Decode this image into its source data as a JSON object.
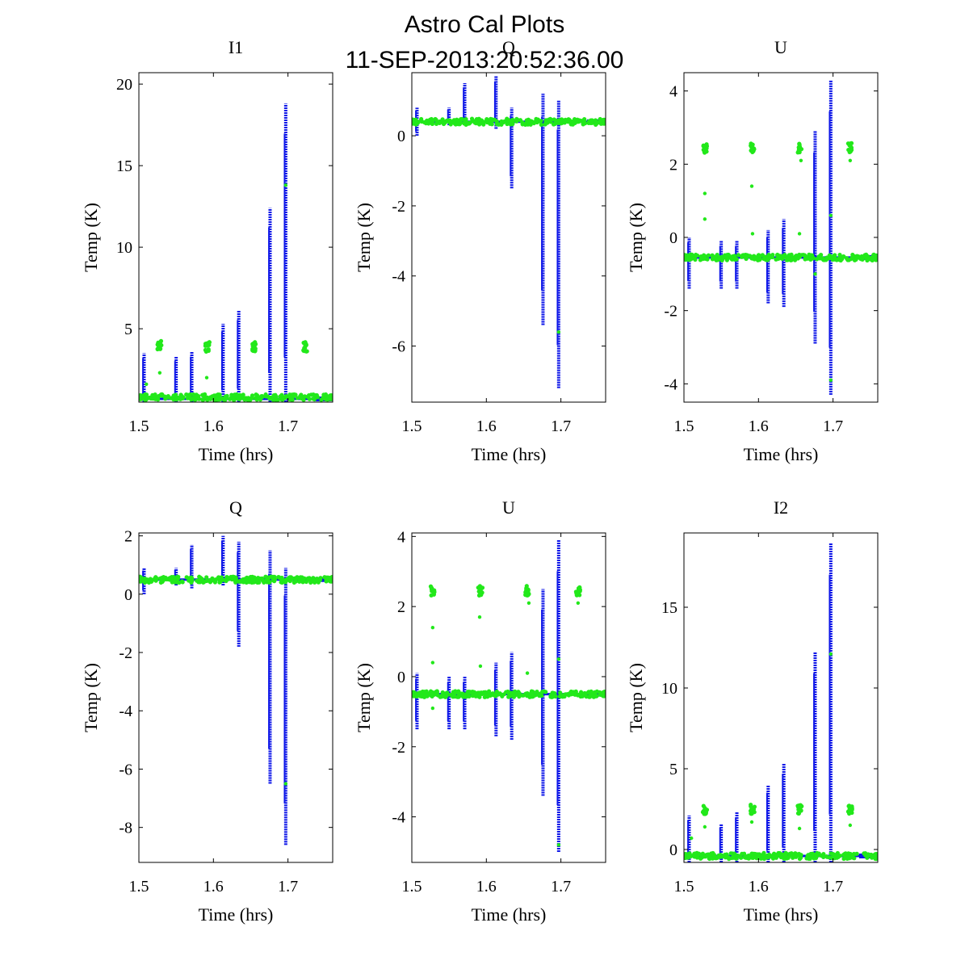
{
  "figure": {
    "title_line1": "Astro Cal Plots",
    "title_line2": "11-SEP-2013:20:52:36.00"
  },
  "chart_data": [
    {
      "type": "scatter",
      "title": "I1",
      "xlabel": "Time (hrs)",
      "ylabel": "Temp (K)",
      "xlim": [
        1.5,
        1.76
      ],
      "ylim": [
        0.5,
        20.7
      ],
      "xticks": [
        1.5,
        1.6,
        1.7
      ],
      "yticks": [
        5,
        10,
        15,
        20
      ],
      "baseline": {
        "blue": 0.7,
        "green": 0.8
      },
      "blue_spikes": [
        {
          "x": 1.507,
          "ymin": 0.5,
          "ymax": 3.5
        },
        {
          "x": 1.55,
          "ymin": 0.5,
          "ymax": 3.3
        },
        {
          "x": 1.571,
          "ymin": 0.5,
          "ymax": 3.6
        },
        {
          "x": 1.613,
          "ymin": 0.5,
          "ymax": 5.3
        },
        {
          "x": 1.634,
          "ymin": 0.5,
          "ymax": 6.1
        },
        {
          "x": 1.676,
          "ymin": 0.5,
          "ymax": 12.4
        },
        {
          "x": 1.697,
          "ymin": 0.5,
          "ymax": 18.8
        }
      ],
      "green_clusters": [
        {
          "x": 1.528,
          "y": 4.0
        },
        {
          "x": 1.592,
          "y": 3.9
        },
        {
          "x": 1.655,
          "y": 3.9
        },
        {
          "x": 1.723,
          "y": 3.9
        }
      ],
      "green_outliers": [
        {
          "x": 1.528,
          "y": 2.3
        },
        {
          "x": 1.591,
          "y": 2.0
        },
        {
          "x": 1.697,
          "y": 13.8
        },
        {
          "x": 1.51,
          "y": 1.6
        }
      ],
      "colors": {
        "blue": "#0d16e8",
        "green": "#22e81a"
      }
    },
    {
      "type": "scatter",
      "title": "Q",
      "xlabel": "Time (hrs)",
      "ylabel": "Temp (K)",
      "xlim": [
        1.5,
        1.76
      ],
      "ylim": [
        -7.6,
        1.8
      ],
      "xticks": [
        1.5,
        1.6,
        1.7
      ],
      "yticks": [
        -6,
        -4,
        -2,
        0
      ],
      "baseline": {
        "blue": 0.4,
        "green": 0.4
      },
      "blue_spikes": [
        {
          "x": 1.507,
          "ymin": 0.0,
          "ymax": 0.8
        },
        {
          "x": 1.55,
          "ymin": 0.3,
          "ymax": 0.8
        },
        {
          "x": 1.571,
          "ymin": 0.3,
          "ymax": 1.5
        },
        {
          "x": 1.613,
          "ymin": 0.2,
          "ymax": 1.7
        },
        {
          "x": 1.634,
          "ymin": -1.5,
          "ymax": 0.8
        },
        {
          "x": 1.676,
          "ymin": -5.4,
          "ymax": 1.2
        },
        {
          "x": 1.697,
          "ymin": -7.2,
          "ymax": 1.0
        }
      ],
      "green_clusters": [],
      "green_outliers": [
        {
          "x": 1.697,
          "y": -5.6
        }
      ],
      "colors": {
        "blue": "#0d16e8",
        "green": "#22e81a"
      }
    },
    {
      "type": "scatter",
      "title": "U",
      "xlabel": "Time (hrs)",
      "ylabel": "Temp (K)",
      "xlim": [
        1.5,
        1.76
      ],
      "ylim": [
        -4.5,
        4.5
      ],
      "xticks": [
        1.5,
        1.6,
        1.7
      ],
      "yticks": [
        -4,
        -2,
        0,
        2,
        4
      ],
      "baseline": {
        "blue": -0.55,
        "green": -0.55
      },
      "blue_spikes": [
        {
          "x": 1.507,
          "ymin": -1.4,
          "ymax": 0.0
        },
        {
          "x": 1.55,
          "ymin": -1.4,
          "ymax": -0.1
        },
        {
          "x": 1.571,
          "ymin": -1.4,
          "ymax": -0.1
        },
        {
          "x": 1.613,
          "ymin": -1.8,
          "ymax": 0.2
        },
        {
          "x": 1.634,
          "ymin": -1.9,
          "ymax": 0.5
        },
        {
          "x": 1.676,
          "ymin": -2.9,
          "ymax": 2.9
        },
        {
          "x": 1.697,
          "ymin": -4.3,
          "ymax": 4.3
        }
      ],
      "green_clusters": [
        {
          "x": 1.528,
          "y": 2.45
        },
        {
          "x": 1.592,
          "y": 2.45
        },
        {
          "x": 1.655,
          "y": 2.45
        },
        {
          "x": 1.723,
          "y": 2.45
        }
      ],
      "green_outliers": [
        {
          "x": 1.528,
          "y": 1.2
        },
        {
          "x": 1.528,
          "y": 0.5
        },
        {
          "x": 1.591,
          "y": 1.4
        },
        {
          "x": 1.592,
          "y": 0.1
        },
        {
          "x": 1.655,
          "y": 0.1
        },
        {
          "x": 1.657,
          "y": 2.1
        },
        {
          "x": 1.723,
          "y": 2.1
        },
        {
          "x": 1.697,
          "y": -3.9
        },
        {
          "x": 1.697,
          "y": 0.6
        },
        {
          "x": 1.676,
          "y": -1.0
        }
      ],
      "colors": {
        "blue": "#0d16e8",
        "green": "#22e81a"
      }
    },
    {
      "type": "scatter",
      "title": "Q",
      "xlabel": "Time (hrs)",
      "ylabel": "Temp (K)",
      "xlim": [
        1.5,
        1.76
      ],
      "ylim": [
        -9.2,
        2.1
      ],
      "xticks": [
        1.5,
        1.6,
        1.7
      ],
      "yticks": [
        -8,
        -6,
        -4,
        -2,
        0,
        2
      ],
      "baseline": {
        "blue": 0.5,
        "green": 0.5
      },
      "blue_spikes": [
        {
          "x": 1.507,
          "ymin": 0.0,
          "ymax": 0.9
        },
        {
          "x": 1.55,
          "ymin": 0.3,
          "ymax": 0.9
        },
        {
          "x": 1.571,
          "ymin": 0.2,
          "ymax": 1.7
        },
        {
          "x": 1.613,
          "ymin": 0.3,
          "ymax": 2.0
        },
        {
          "x": 1.634,
          "ymin": -1.8,
          "ymax": 1.8
        },
        {
          "x": 1.676,
          "ymin": -6.5,
          "ymax": 1.5
        },
        {
          "x": 1.697,
          "ymin": -8.6,
          "ymax": 0.9
        }
      ],
      "green_clusters": [],
      "green_outliers": [
        {
          "x": 1.697,
          "y": -6.5
        }
      ],
      "colors": {
        "blue": "#0d16e8",
        "green": "#22e81a"
      }
    },
    {
      "type": "scatter",
      "title": "U",
      "xlabel": "Time (hrs)",
      "ylabel": "Temp (K)",
      "xlim": [
        1.5,
        1.76
      ],
      "ylim": [
        -5.3,
        4.1
      ],
      "xticks": [
        1.5,
        1.6,
        1.7
      ],
      "yticks": [
        -4,
        -2,
        0,
        2,
        4
      ],
      "baseline": {
        "blue": -0.5,
        "green": -0.5
      },
      "blue_spikes": [
        {
          "x": 1.507,
          "ymin": -1.5,
          "ymax": 0.1
        },
        {
          "x": 1.55,
          "ymin": -1.5,
          "ymax": 0.0
        },
        {
          "x": 1.571,
          "ymin": -1.5,
          "ymax": 0.0
        },
        {
          "x": 1.613,
          "ymin": -1.7,
          "ymax": 0.4
        },
        {
          "x": 1.634,
          "ymin": -1.8,
          "ymax": 0.7
        },
        {
          "x": 1.676,
          "ymin": -3.4,
          "ymax": 2.5
        },
        {
          "x": 1.697,
          "ymin": -5.0,
          "ymax": 3.9
        }
      ],
      "green_clusters": [
        {
          "x": 1.528,
          "y": 2.45
        },
        {
          "x": 1.592,
          "y": 2.45
        },
        {
          "x": 1.655,
          "y": 2.45
        },
        {
          "x": 1.723,
          "y": 2.45
        }
      ],
      "green_outliers": [
        {
          "x": 1.528,
          "y": 1.4
        },
        {
          "x": 1.528,
          "y": 0.4
        },
        {
          "x": 1.591,
          "y": 1.7
        },
        {
          "x": 1.592,
          "y": 0.3
        },
        {
          "x": 1.655,
          "y": 0.1
        },
        {
          "x": 1.657,
          "y": 2.1
        },
        {
          "x": 1.723,
          "y": 2.1
        },
        {
          "x": 1.697,
          "y": -4.8
        },
        {
          "x": 1.697,
          "y": 0.5
        },
        {
          "x": 1.528,
          "y": -0.9
        }
      ],
      "colors": {
        "blue": "#0d16e8",
        "green": "#22e81a"
      }
    },
    {
      "type": "scatter",
      "title": "I2",
      "xlabel": "Time (hrs)",
      "ylabel": "Temp (K)",
      "xlim": [
        1.5,
        1.76
      ],
      "ylim": [
        -0.8,
        19.6
      ],
      "xticks": [
        1.5,
        1.6,
        1.7
      ],
      "yticks": [
        0,
        5,
        10,
        15
      ],
      "baseline": {
        "blue": -0.4,
        "green": -0.4
      },
      "blue_spikes": [
        {
          "x": 1.507,
          "ymin": -0.8,
          "ymax": 2.1
        },
        {
          "x": 1.55,
          "ymin": -0.8,
          "ymax": 1.6
        },
        {
          "x": 1.571,
          "ymin": -0.8,
          "ymax": 2.3
        },
        {
          "x": 1.613,
          "ymin": -0.8,
          "ymax": 4.0
        },
        {
          "x": 1.634,
          "ymin": -0.8,
          "ymax": 5.3
        },
        {
          "x": 1.676,
          "ymin": -0.8,
          "ymax": 12.2
        },
        {
          "x": 1.697,
          "ymin": -0.8,
          "ymax": 19.0
        }
      ],
      "green_clusters": [
        {
          "x": 1.528,
          "y": 2.5
        },
        {
          "x": 1.592,
          "y": 2.5
        },
        {
          "x": 1.655,
          "y": 2.5
        },
        {
          "x": 1.723,
          "y": 2.5
        }
      ],
      "green_outliers": [
        {
          "x": 1.528,
          "y": 1.4
        },
        {
          "x": 1.591,
          "y": 1.7
        },
        {
          "x": 1.655,
          "y": 1.3
        },
        {
          "x": 1.697,
          "y": 12.1
        },
        {
          "x": 1.51,
          "y": 0.7
        },
        {
          "x": 1.723,
          "y": 1.5
        }
      ],
      "colors": {
        "blue": "#0d16e8",
        "green": "#22e81a"
      }
    }
  ]
}
